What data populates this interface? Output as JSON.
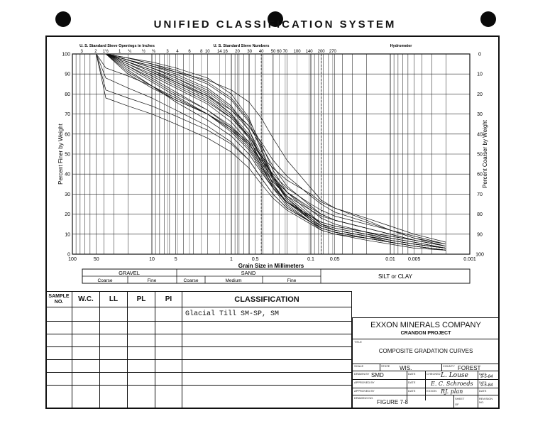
{
  "page_title": "UNIFIED CLASSIFICATION SYSTEM",
  "chart_data": {
    "type": "line",
    "title": "",
    "xlabel": "Grain Size in Millimeters",
    "ylabel_left": "Percent Finer by Weight",
    "ylabel_right": "Percent Coarser by Weight",
    "x_scale": "log",
    "x_reversed": true,
    "xlim": [
      100,
      0.001
    ],
    "ylim": [
      0,
      100
    ],
    "x_ticks": [
      {
        "v": 100,
        "l": "100"
      },
      {
        "v": 50,
        "l": "50"
      },
      {
        "v": 10,
        "l": "10"
      },
      {
        "v": 5,
        "l": "5"
      },
      {
        "v": 1,
        "l": "1"
      },
      {
        "v": 0.5,
        "l": "0.5"
      },
      {
        "v": 0.1,
        "l": "0.1"
      },
      {
        "v": 0.05,
        "l": "0.05"
      },
      {
        "v": 0.01,
        "l": "0.01"
      },
      {
        "v": 0.005,
        "l": "0.005"
      },
      {
        "v": 0.001,
        "l": "0.001"
      }
    ],
    "y_ticks_left": [
      "0",
      "10",
      "20",
      "30",
      "40",
      "50",
      "60",
      "70",
      "80",
      "90",
      "100"
    ],
    "y_ticks_right": [
      "100",
      "90",
      "80",
      "70",
      "60",
      "50",
      "40",
      "30",
      "20",
      "10",
      "0"
    ],
    "top_axis_labels": {
      "sieve_openings_title": "U. S. Standard Sieve Openings in Inches",
      "sieve_numbers_title": "U. S. Standard Sieve Numbers",
      "hydrometer_title": "Hydrometer",
      "openings": [
        {
          "v": 76.2,
          "l": "3"
        },
        {
          "v": 50.8,
          "l": "2"
        },
        {
          "v": 38.1,
          "l": "1½"
        },
        {
          "v": 25.4,
          "l": "1"
        },
        {
          "v": 19.05,
          "l": "¾"
        },
        {
          "v": 12.7,
          "l": "½"
        },
        {
          "v": 9.52,
          "l": "⅜"
        }
      ],
      "numbers": [
        {
          "v": 6.35,
          "l": "3"
        },
        {
          "v": 4.76,
          "l": "4"
        },
        {
          "v": 3.36,
          "l": "6"
        },
        {
          "v": 2.38,
          "l": "8"
        },
        {
          "v": 2.0,
          "l": "10"
        },
        {
          "v": 1.41,
          "l": "14"
        },
        {
          "v": 1.19,
          "l": "16"
        },
        {
          "v": 0.84,
          "l": "20"
        },
        {
          "v": 0.59,
          "l": "30"
        },
        {
          "v": 0.42,
          "l": "40"
        },
        {
          "v": 0.297,
          "l": "50"
        },
        {
          "v": 0.25,
          "l": "60"
        },
        {
          "v": 0.21,
          "l": "70"
        },
        {
          "v": 0.149,
          "l": "100"
        },
        {
          "v": 0.105,
          "l": "140"
        },
        {
          "v": 0.074,
          "l": "200"
        },
        {
          "v": 0.053,
          "l": "270"
        }
      ]
    },
    "grid": true,
    "series": [
      {
        "x": [
          38,
          20,
          10,
          5,
          2,
          1,
          0.6,
          0.42,
          0.3,
          0.2,
          0.1,
          0.074,
          0.05,
          0.02,
          0.01,
          0.005,
          0.002
        ],
        "y": [
          100,
          97,
          93,
          88,
          80,
          70,
          58,
          45,
          33,
          24,
          16,
          13,
          11,
          8,
          6,
          4,
          2
        ]
      },
      {
        "x": [
          38,
          20,
          10,
          5,
          2,
          1,
          0.6,
          0.42,
          0.3,
          0.2,
          0.1,
          0.074,
          0.05,
          0.02,
          0.01,
          0.005,
          0.002
        ],
        "y": [
          100,
          96,
          92,
          87,
          79,
          70,
          60,
          49,
          38,
          28,
          18,
          14,
          12,
          9,
          7,
          5,
          3
        ]
      },
      {
        "x": [
          38,
          20,
          10,
          5,
          2,
          1,
          0.6,
          0.42,
          0.3,
          0.2,
          0.1,
          0.074,
          0.05,
          0.02,
          0.01,
          0.005,
          0.002
        ],
        "y": [
          100,
          98,
          95,
          91,
          85,
          77,
          66,
          52,
          38,
          27,
          17,
          13,
          11,
          8,
          6,
          4,
          2
        ]
      },
      {
        "x": [
          38,
          20,
          10,
          5,
          2,
          1,
          0.6,
          0.42,
          0.3,
          0.2,
          0.1,
          0.074,
          0.05,
          0.02,
          0.01,
          0.005,
          0.002
        ],
        "y": [
          100,
          95,
          89,
          83,
          75,
          66,
          56,
          44,
          34,
          26,
          19,
          16,
          14,
          11,
          9,
          7,
          4
        ]
      },
      {
        "x": [
          38,
          20,
          10,
          5,
          2,
          1,
          0.6,
          0.42,
          0.3,
          0.2,
          0.1,
          0.074,
          0.05,
          0.02,
          0.01,
          0.005,
          0.002
        ],
        "y": [
          100,
          97,
          94,
          90,
          83,
          74,
          62,
          48,
          35,
          25,
          16,
          12,
          10,
          7,
          5,
          3,
          2
        ]
      },
      {
        "x": [
          38,
          20,
          10,
          5,
          2,
          1,
          0.6,
          0.42,
          0.3,
          0.2,
          0.1,
          0.074,
          0.05,
          0.02,
          0.01,
          0.005,
          0.002
        ],
        "y": [
          100,
          94,
          88,
          81,
          72,
          63,
          54,
          44,
          36,
          29,
          22,
          19,
          17,
          13,
          10,
          7,
          4
        ]
      },
      {
        "x": [
          38,
          20,
          10,
          5,
          2,
          1,
          0.6,
          0.42,
          0.3,
          0.2,
          0.1,
          0.074,
          0.05,
          0.02,
          0.01,
          0.005,
          0.002
        ],
        "y": [
          100,
          98,
          96,
          93,
          88,
          80,
          68,
          53,
          39,
          28,
          17,
          13,
          11,
          8,
          6,
          4,
          2
        ]
      },
      {
        "x": [
          38,
          20,
          10,
          5,
          2,
          1,
          0.6,
          0.42,
          0.3,
          0.2,
          0.1,
          0.074,
          0.05,
          0.02,
          0.01,
          0.005,
          0.002
        ],
        "y": [
          100,
          93,
          86,
          79,
          70,
          61,
          52,
          42,
          33,
          26,
          19,
          15,
          13,
          10,
          8,
          6,
          3
        ]
      },
      {
        "x": [
          38,
          20,
          10,
          5,
          2,
          1,
          0.6,
          0.42,
          0.3,
          0.2,
          0.1,
          0.074,
          0.05,
          0.02,
          0.01,
          0.005,
          0.002
        ],
        "y": [
          100,
          96,
          91,
          85,
          77,
          68,
          58,
          46,
          35,
          26,
          17,
          14,
          12,
          9,
          7,
          5,
          3
        ]
      },
      {
        "x": [
          38,
          20,
          10,
          5,
          2,
          1,
          0.6,
          0.42,
          0.3,
          0.2,
          0.1,
          0.074,
          0.05,
          0.02,
          0.01,
          0.005,
          0.002
        ],
        "y": [
          100,
          97,
          93,
          89,
          82,
          73,
          64,
          54,
          44,
          34,
          24,
          20,
          17,
          13,
          10,
          7,
          4
        ]
      },
      {
        "x": [
          38,
          20,
          10,
          5,
          2,
          1,
          0.6,
          0.42,
          0.3,
          0.2,
          0.1,
          0.074,
          0.05,
          0.02,
          0.01,
          0.005,
          0.002
        ],
        "y": [
          100,
          95,
          90,
          84,
          76,
          68,
          59,
          49,
          39,
          31,
          22,
          18,
          15,
          11,
          8,
          6,
          3
        ]
      },
      {
        "x": [
          38,
          20,
          10,
          5,
          2,
          1,
          0.6,
          0.42,
          0.3,
          0.2,
          0.1,
          0.074,
          0.05,
          0.02,
          0.01,
          0.005,
          0.002
        ],
        "y": [
          100,
          98,
          95,
          92,
          86,
          78,
          67,
          55,
          42,
          31,
          20,
          15,
          12,
          9,
          6,
          4,
          2
        ]
      },
      {
        "x": [
          38,
          20,
          10,
          5,
          2,
          1,
          0.6,
          0.42,
          0.3,
          0.2,
          0.1,
          0.074,
          0.05,
          0.02,
          0.01,
          0.005,
          0.002
        ],
        "y": [
          100,
          92,
          84,
          76,
          67,
          59,
          50,
          41,
          33,
          26,
          19,
          16,
          14,
          11,
          9,
          7,
          4
        ]
      },
      {
        "x": [
          38,
          20,
          10,
          5,
          2,
          1,
          0.6,
          0.42,
          0.3,
          0.2,
          0.1,
          0.074,
          0.05,
          0.02,
          0.01,
          0.005,
          0.002
        ],
        "y": [
          100,
          96,
          92,
          86,
          78,
          69,
          59,
          48,
          37,
          28,
          18,
          14,
          12,
          9,
          7,
          5,
          3
        ]
      },
      {
        "x": [
          50,
          38,
          20,
          10,
          5,
          2,
          1,
          0.6,
          0.42,
          0.3,
          0.2,
          0.1,
          0.074,
          0.05,
          0.02,
          0.01,
          0.005,
          0.002
        ],
        "y": [
          100,
          93,
          89,
          84,
          78,
          70,
          62,
          53,
          43,
          34,
          26,
          18,
          14,
          12,
          9,
          7,
          5,
          3
        ]
      },
      {
        "x": [
          50,
          38,
          20,
          10,
          5,
          2,
          1,
          0.6,
          0.42,
          0.3,
          0.2,
          0.1,
          0.074,
          0.05,
          0.02,
          0.01,
          0.005,
          0.002
        ],
        "y": [
          100,
          82,
          78,
          74,
          69,
          62,
          55,
          47,
          38,
          30,
          23,
          16,
          13,
          11,
          8,
          6,
          4,
          2
        ]
      },
      {
        "x": [
          50,
          38,
          20,
          10,
          5,
          2,
          1,
          0.6,
          0.42,
          0.3,
          0.2,
          0.1,
          0.074,
          0.05,
          0.02,
          0.01,
          0.005,
          0.002
        ],
        "y": [
          100,
          78,
          74,
          70,
          65,
          58,
          51,
          43,
          35,
          28,
          22,
          15,
          12,
          10,
          8,
          6,
          4,
          2
        ]
      },
      {
        "x": [
          50,
          38,
          20,
          10,
          5,
          2,
          1,
          0.6,
          0.42,
          0.3,
          0.2,
          0.1,
          0.074,
          0.05,
          0.02,
          0.01,
          0.005,
          0.002
        ],
        "y": [
          100,
          88,
          83,
          78,
          72,
          64,
          56,
          47,
          38,
          30,
          23,
          16,
          13,
          11,
          8,
          6,
          4,
          2
        ]
      },
      {
        "x": [
          38,
          20,
          10,
          5,
          2,
          1,
          0.6,
          0.42,
          0.3,
          0.2,
          0.1,
          0.074,
          0.05,
          0.02,
          0.01,
          0.005,
          0.002
        ],
        "y": [
          100,
          90,
          83,
          77,
          70,
          63,
          56,
          49,
          43,
          37,
          30,
          26,
          23,
          18,
          14,
          10,
          6
        ]
      },
      {
        "x": [
          38,
          20,
          10,
          5,
          2,
          1,
          0.6,
          0.42,
          0.3,
          0.2,
          0.1,
          0.074,
          0.05,
          0.02,
          0.01,
          0.005,
          0.002
        ],
        "y": [
          100,
          97,
          94,
          91,
          87,
          82,
          76,
          68,
          58,
          47,
          33,
          27,
          23,
          17,
          12,
          8,
          4
        ]
      },
      {
        "x": [
          38,
          20,
          10,
          5,
          2,
          1,
          0.6,
          0.42,
          0.3,
          0.2,
          0.1,
          0.074,
          0.05,
          0.02,
          0.01,
          0.005,
          0.002
        ],
        "y": [
          100,
          96,
          91,
          86,
          79,
          72,
          64,
          56,
          47,
          39,
          29,
          25,
          21,
          16,
          12,
          8,
          5
        ]
      },
      {
        "x": [
          38,
          20,
          10,
          5,
          2,
          1,
          0.6,
          0.42,
          0.3,
          0.2,
          0.1,
          0.074,
          0.05,
          0.02,
          0.01,
          0.005,
          0.002
        ],
        "y": [
          100,
          94,
          87,
          80,
          72,
          64,
          55,
          46,
          38,
          31,
          23,
          20,
          17,
          13,
          10,
          7,
          4
        ]
      },
      {
        "x": [
          38,
          20,
          10,
          5,
          2,
          1,
          0.6,
          0.42,
          0.3,
          0.2,
          0.1,
          0.074,
          0.05,
          0.02,
          0.01,
          0.005,
          0.002
        ],
        "y": [
          100,
          97,
          93,
          88,
          81,
          72,
          62,
          50,
          39,
          29,
          19,
          15,
          13,
          10,
          7,
          5,
          3
        ]
      },
      {
        "x": [
          38,
          20,
          10,
          5,
          2,
          1,
          0.6,
          0.42,
          0.3,
          0.2,
          0.1,
          0.074,
          0.05,
          0.02,
          0.01,
          0.005,
          0.002
        ],
        "y": [
          100,
          91,
          84,
          77,
          70,
          62,
          55,
          47,
          40,
          33,
          25,
          22,
          19,
          15,
          12,
          9,
          5
        ]
      }
    ],
    "gradation_bands": {
      "gravel_label": "GRAVEL",
      "sand_label": "SAND",
      "silt_clay_label": "SILT or CLAY",
      "coarse_gravel": "Coarse",
      "fine_gravel": "Fine",
      "coarse_sand": "Coarse",
      "medium_sand": "Medium",
      "fine_sand": "Fine"
    }
  },
  "sample_table": {
    "headers": {
      "sample": "SAMPLE NO.",
      "wc": "W.C.",
      "ll": "LL",
      "pl": "PL",
      "pi": "PI",
      "classification": "CLASSIFICATION"
    },
    "classification_entry": "Glacial Till SM-SP, SM"
  },
  "title_block": {
    "company": "EXXON MINERALS COMPANY",
    "project": "CRANDON PROJECT",
    "title_label": "TITLE",
    "title": "COMPOSITE GRADATION CURVES",
    "scale_label": "SCALE",
    "state_label": "STATE",
    "state": "WIS.",
    "county_label": "COUNTY",
    "county": "FOREST",
    "drawn_by_label": "DRAWN BY",
    "drawn_by": "SMD",
    "date_label": "DATE",
    "checked_label": "CHECKED",
    "checked": "L. Louse",
    "checked_date": "9-5-84",
    "approved_label": "APPROVED BY",
    "approved_by_label": "APPROVED BY",
    "approved_sig": "E. C. Schroeds",
    "approved_date": "9-5-84",
    "exxon_label": "EXXON",
    "exxon_sig": "RJ. plan",
    "drawing_no_label": "DRAWING NO.",
    "figure": "FIGURE 7-8",
    "sheet_label": "SHEET",
    "of_label": "OF",
    "revision_label": "REVISION NO."
  }
}
